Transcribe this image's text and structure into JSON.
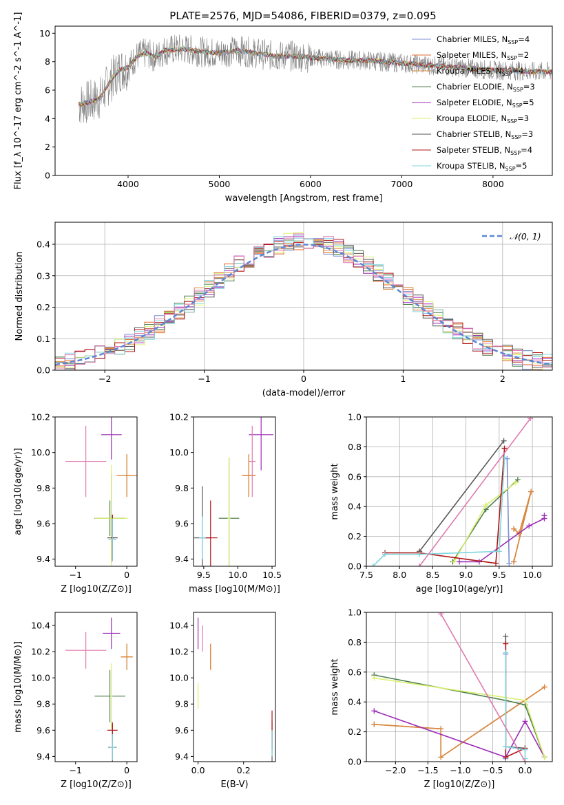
{
  "figure": {
    "title": "PLATE=2576, MJD=54086, FIBERID=0379, z=0.095"
  },
  "series_styles": [
    {
      "name": "Chabrier MILES",
      "nssp": "4",
      "color": "#7b8fd4"
    },
    {
      "name": "Salpeter MILES",
      "nssp": "2",
      "color": "#e06a2a"
    },
    {
      "name": "Kroupa MILES",
      "nssp": "4",
      "color": "#d7893f"
    },
    {
      "name": "Chabrier ELODIE",
      "nssp": "3",
      "color": "#4f7f4f"
    },
    {
      "name": "Salpeter ELODIE",
      "nssp": "5",
      "color": "#9d2bb5"
    },
    {
      "name": "Kroupa ELODIE",
      "nssp": "3",
      "color": "#d9f06b"
    },
    {
      "name": "Chabrier STELIB",
      "nssp": "3",
      "color": "#555555"
    },
    {
      "name": "Salpeter STELIB",
      "nssp": "4",
      "color": "#b01515"
    },
    {
      "name": "Kroupa STELIB",
      "nssp": "5",
      "color": "#7fd6e0"
    }
  ],
  "chart_data": [
    {
      "id": "spectrum",
      "type": "line",
      "title": "PLATE=2576, MJD=54086, FIBERID=0379, z=0.095",
      "xlabel": "wavelength [Angstrom, rest frame]",
      "ylabel": "Flux [f_λ 10^-17 erg cm^-2 s^-1 A^-1]",
      "xlim": [
        3200,
        8650
      ],
      "ylim": [
        0,
        10.5
      ],
      "xticks": [
        4000,
        5000,
        6000,
        7000,
        8000
      ],
      "yticks": [
        0,
        2,
        4,
        6,
        8,
        10
      ],
      "legend_position": "right",
      "observed": {
        "color": "#808080",
        "x_range": [
          3460,
          8650
        ]
      },
      "model_continuum": [
        [
          3460,
          5.0
        ],
        [
          3600,
          5.2
        ],
        [
          3700,
          5.5
        ],
        [
          3800,
          6.6
        ],
        [
          3900,
          7.4
        ],
        [
          4000,
          7.6
        ],
        [
          4100,
          8.4
        ],
        [
          4200,
          8.6
        ],
        [
          4300,
          8.3
        ],
        [
          4400,
          8.8
        ],
        [
          4600,
          8.9
        ],
        [
          4800,
          8.7
        ],
        [
          5000,
          8.6
        ],
        [
          5200,
          8.8
        ],
        [
          5400,
          8.6
        ],
        [
          5600,
          8.4
        ],
        [
          5800,
          8.4
        ],
        [
          6000,
          8.3
        ],
        [
          6200,
          8.2
        ],
        [
          6400,
          8.1
        ],
        [
          6600,
          8.1
        ],
        [
          6800,
          8.0
        ],
        [
          7000,
          7.9
        ],
        [
          7200,
          7.8
        ],
        [
          7400,
          7.7
        ],
        [
          7600,
          7.6
        ],
        [
          7800,
          7.5
        ],
        [
          8000,
          7.4
        ],
        [
          8200,
          7.4
        ],
        [
          8400,
          7.3
        ],
        [
          8600,
          7.3
        ]
      ]
    },
    {
      "id": "residual-histogram",
      "type": "line",
      "xlabel": "(data-model)/error",
      "ylabel": "Normed distribution",
      "xlim": [
        -2.5,
        2.5
      ],
      "ylim": [
        0,
        0.47
      ],
      "xticks": [
        -2,
        -1,
        0,
        1,
        2
      ],
      "yticks": [
        0.0,
        0.1,
        0.2,
        0.3,
        0.4
      ],
      "grid": true,
      "legend_position": "top-right",
      "reference_curve": {
        "name": "𝒩(0, 1)",
        "mean": 0,
        "sigma": 1,
        "color": "#5b86d4",
        "style": "dashed"
      }
    },
    {
      "id": "age-vs-Z",
      "type": "scatter",
      "xlabel": "Z [log10(Z/Z⊙)]",
      "ylabel": "age [log10(age/yr)]",
      "xlim": [
        -1.4,
        0.2
      ],
      "ylim": [
        9.36,
        10.2
      ],
      "xticks": [
        -1,
        0
      ],
      "yticks": [
        9.4,
        9.6,
        9.8,
        10.0,
        10.2
      ],
      "points": [
        {
          "model": 0,
          "x": -0.3,
          "y": 9.63,
          "xerr": 0.03,
          "yerr": 0.25
        },
        {
          "model": 1,
          "x": 0.0,
          "y": 9.87,
          "xerr": 0.05,
          "yerr": 0.12
        },
        {
          "model": 2,
          "x": 0.0,
          "y": 9.87,
          "xerr": 0.2,
          "yerr": 0.12
        },
        {
          "model": 3,
          "x": -0.33,
          "y": 9.63,
          "xerr": 0.3,
          "yerr": 0.1
        },
        {
          "model": 4,
          "x": -0.3,
          "y": 10.1,
          "xerr": 0.2,
          "yerr": 0.14
        },
        {
          "model": 5,
          "x": -0.3,
          "y": 9.63,
          "xerr": 0.32,
          "yerr": 0.3
        },
        {
          "model": 6,
          "x": -0.28,
          "y": 9.52,
          "xerr": 0.1,
          "yerr": 0.13
        },
        {
          "model": 7,
          "x": -0.28,
          "y": 9.52,
          "xerr": 0.03,
          "yerr": 0.13
        },
        {
          "model": 8,
          "x": -0.28,
          "y": 9.51,
          "xerr": 0.08,
          "yerr": 0.12
        },
        {
          "model": 0,
          "x": -0.8,
          "y": 9.95,
          "xerr": 0.4,
          "yerr": 0.2,
          "pink": true
        }
      ]
    },
    {
      "id": "age-vs-mass",
      "type": "scatter",
      "xlabel": "mass [log10(M/M⊙)]",
      "ylabel": "",
      "xlim": [
        9.35,
        10.55
      ],
      "ylim": [
        9.36,
        10.2
      ],
      "xticks": [
        9.5,
        10.0,
        10.5
      ],
      "yticks": [
        9.4,
        9.6,
        9.8,
        10.0,
        10.2
      ],
      "points": [
        {
          "model": 6,
          "x": 9.48,
          "y": 9.52,
          "xerr": 0.12,
          "yerr": 0.29
        },
        {
          "model": 7,
          "x": 9.6,
          "y": 9.52,
          "xerr": 0.1,
          "yerr": 0.21
        },
        {
          "model": 8,
          "x": 9.48,
          "y": 9.52,
          "xerr": 0.05,
          "yerr": 0.12
        },
        {
          "model": 3,
          "x": 9.87,
          "y": 9.63,
          "xerr": 0.15,
          "yerr": 0.34
        },
        {
          "model": 5,
          "x": 9.87,
          "y": 9.63,
          "xerr": 0.02,
          "yerr": 0.34
        },
        {
          "model": 1,
          "x": 10.16,
          "y": 9.87,
          "xerr": 0.1,
          "yerr": 0.12
        },
        {
          "model": 2,
          "x": 10.16,
          "y": 9.87,
          "xerr": 0.06,
          "yerr": 0.12
        },
        {
          "model": 4,
          "x": 10.34,
          "y": 10.1,
          "xerr": 0.18,
          "yerr": 0.2
        },
        {
          "model": 0,
          "x": 10.21,
          "y": 9.95,
          "xerr": 0.05,
          "yerr": 0.2,
          "pink": true
        }
      ]
    },
    {
      "id": "massweight-vs-age",
      "type": "line",
      "xlabel": "age [log10(age/yr)]",
      "ylabel": "mass weight",
      "xlim": [
        7.5,
        10.3
      ],
      "ylim": [
        0,
        1.0
      ],
      "xticks": [
        7.5,
        8.0,
        8.5,
        9.0,
        9.5,
        10.0
      ],
      "yticks": [
        0.0,
        0.2,
        0.4,
        0.6,
        0.8,
        1.0
      ],
      "grid": true,
      "series": [
        {
          "model": 0,
          "x": [
            9.65,
            9.62
          ],
          "y": [
            0.02,
            0.72
          ]
        },
        {
          "model": 1,
          "x": [
            9.72,
            9.98,
            9.8,
            9.72
          ],
          "y": [
            0.03,
            0.5,
            0.22,
            0.25
          ]
        },
        {
          "model": 2,
          "x": [
            9.72,
            9.98,
            9.8,
            9.72
          ],
          "y": [
            0.03,
            0.5,
            0.22,
            0.25
          ]
        },
        {
          "model": 3,
          "x": [
            8.8,
            9.3,
            9.78
          ],
          "y": [
            0.03,
            0.38,
            0.58
          ]
        },
        {
          "model": 4,
          "x": [
            8.9,
            9.2,
            9.95,
            10.18,
            10.18
          ],
          "y": [
            0.03,
            0.03,
            0.27,
            0.32,
            0.34
          ]
        },
        {
          "model": 5,
          "x": [
            8.82,
            9.3,
            9.75
          ],
          "y": [
            0.03,
            0.41,
            0.56
          ]
        },
        {
          "model": 6,
          "x": [
            8.3,
            9.57
          ],
          "y": [
            0.1,
            0.84
          ]
        },
        {
          "model": 7,
          "x": [
            7.78,
            8.3,
            9.45,
            9.58
          ],
          "y": [
            0.09,
            0.09,
            0.02,
            0.79
          ]
        },
        {
          "model": 8,
          "x": [
            7.6,
            7.78,
            8.3,
            9.5,
            9.58
          ],
          "y": [
            0.0,
            0.08,
            0.08,
            0.1,
            0.73
          ]
        },
        {
          "model": 0,
          "x": [
            8.3,
            9.97
          ],
          "y": [
            0.0,
            0.99
          ],
          "pink": true
        }
      ]
    },
    {
      "id": "mass-vs-Z",
      "type": "scatter",
      "xlabel": "Z [log10(Z/Z⊙)]",
      "ylabel": "mass [log10(M/M⊙)]",
      "xlim": [
        -1.4,
        0.2
      ],
      "ylim": [
        9.36,
        10.5
      ],
      "xticks": [
        -1,
        0
      ],
      "yticks": [
        9.4,
        9.6,
        9.8,
        10.0,
        10.2,
        10.4
      ],
      "points": [
        {
          "model": 1,
          "x": 0.0,
          "y": 10.16,
          "xerr": 0.1,
          "yerr": 0.1
        },
        {
          "model": 2,
          "x": 0.0,
          "y": 10.16,
          "xerr": 0.12,
          "yerr": 0.1
        },
        {
          "model": 3,
          "x": -0.33,
          "y": 9.86,
          "xerr": 0.3,
          "yerr": 0.2
        },
        {
          "model": 4,
          "x": -0.3,
          "y": 10.34,
          "xerr": 0.17,
          "yerr": 0.12
        },
        {
          "model": 5,
          "x": -0.3,
          "y": 9.86,
          "xerr": 0.02,
          "yerr": 0.25
        },
        {
          "model": 6,
          "x": -0.28,
          "y": 9.47,
          "xerr": 0.08,
          "yerr": 0.18
        },
        {
          "model": 7,
          "x": -0.28,
          "y": 9.6,
          "xerr": 0.1,
          "yerr": 0.06
        },
        {
          "model": 8,
          "x": -0.28,
          "y": 9.47,
          "xerr": 0.06,
          "yerr": 0.1
        },
        {
          "model": 0,
          "x": -0.8,
          "y": 10.21,
          "xerr": 0.4,
          "yerr": 0.14,
          "pink": true
        }
      ]
    },
    {
      "id": "mass-vs-ebv",
      "type": "scatter",
      "xlabel": "E(B-V)",
      "ylabel": "",
      "xlim": [
        -0.02,
        0.34
      ],
      "ylim": [
        9.36,
        10.5
      ],
      "xticks": [
        0.0,
        0.2
      ],
      "yticks": [
        9.4,
        9.6,
        9.8,
        10.0,
        10.2,
        10.4
      ],
      "points": [
        {
          "model": 4,
          "x": 0.0,
          "y": 10.34,
          "xerr": 0.0,
          "yerr": 0.12
        },
        {
          "model": 5,
          "x": 0.0,
          "y": 9.86,
          "xerr": 0.0,
          "yerr": 0.1
        },
        {
          "model": 1,
          "x": 0.055,
          "y": 10.16,
          "xerr": 0.0,
          "yerr": 0.1
        },
        {
          "model": 2,
          "x": 0.055,
          "y": 10.16,
          "xerr": 0.0,
          "yerr": 0.08
        },
        {
          "model": 0,
          "x": 0.02,
          "y": 10.3,
          "xerr": 0.0,
          "yerr": 0.1,
          "pink": true
        },
        {
          "model": 6,
          "x": 0.325,
          "y": 9.5,
          "xerr": 0.0,
          "yerr": 0.17
        },
        {
          "model": 7,
          "x": 0.325,
          "y": 9.6,
          "xerr": 0.0,
          "yerr": 0.15
        },
        {
          "model": 8,
          "x": 0.325,
          "y": 9.5,
          "xerr": 0.0,
          "yerr": 0.1
        }
      ]
    },
    {
      "id": "massweight-vs-Z",
      "type": "line",
      "xlabel": "Z [log10(Z/Z⊙)]",
      "ylabel": "mass weight",
      "xlim": [
        -2.45,
        0.42
      ],
      "ylim": [
        0,
        1.0
      ],
      "xticks": [
        -2.0,
        -1.5,
        -1.0,
        -0.5,
        0.0
      ],
      "yticks": [
        0.0,
        0.2,
        0.4,
        0.6,
        0.8,
        1.0
      ],
      "grid": true,
      "series": [
        {
          "model": 0,
          "x": [
            -0.3,
            -0.3
          ],
          "y": [
            0.02,
            0.72
          ]
        },
        {
          "model": 1,
          "x": [
            -2.33,
            -1.3,
            -1.3,
            0.3
          ],
          "y": [
            0.25,
            0.22,
            0.03,
            0.5
          ]
        },
        {
          "model": 2,
          "x": [
            -2.33,
            -1.3,
            -1.3,
            0.3
          ],
          "y": [
            0.25,
            0.22,
            0.03,
            0.5
          ]
        },
        {
          "model": 3,
          "x": [
            -2.33,
            -0.3,
            0.0,
            0.3
          ],
          "y": [
            0.58,
            0.41,
            0.38,
            0.03
          ]
        },
        {
          "model": 4,
          "x": [
            -2.33,
            -0.3,
            0.0,
            0.3
          ],
          "y": [
            0.34,
            0.03,
            0.27,
            0.03
          ]
        },
        {
          "model": 5,
          "x": [
            -2.33,
            0.0,
            0.3
          ],
          "y": [
            0.56,
            0.41,
            0.03
          ]
        },
        {
          "model": 6,
          "x": [
            -0.3,
            -0.3,
            0.0
          ],
          "y": [
            0.84,
            0.1,
            0.09
          ]
        },
        {
          "model": 7,
          "x": [
            -0.3,
            -0.3,
            0.0
          ],
          "y": [
            0.79,
            0.03,
            0.09
          ]
        },
        {
          "model": 8,
          "x": [
            -0.3,
            -0.3,
            0.0,
            0.0
          ],
          "y": [
            0.73,
            0.1,
            0.08,
            0.02
          ]
        },
        {
          "model": 0,
          "x": [
            -1.3,
            0.0
          ],
          "y": [
            0.99,
            0.0
          ],
          "pink": true
        }
      ]
    }
  ]
}
